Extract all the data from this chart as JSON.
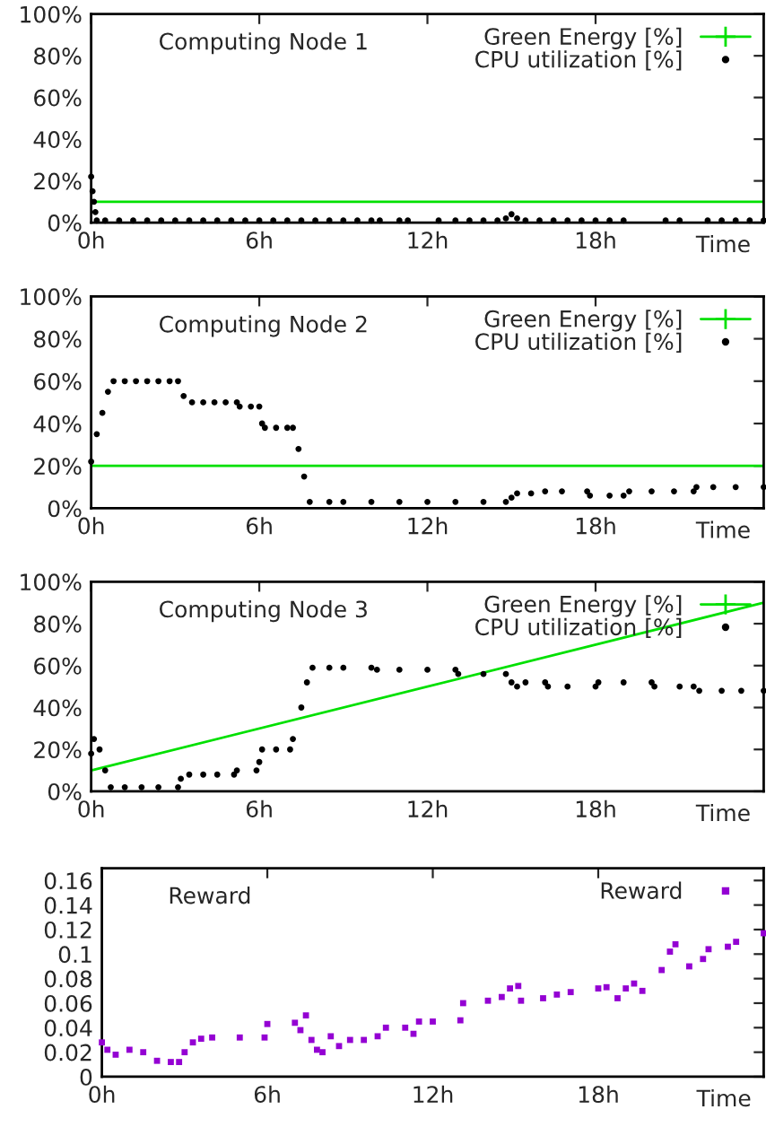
{
  "chart_data": [
    {
      "type": "line",
      "title": "Computing Node 1",
      "xlabel": "Time",
      "xlim": [
        0,
        24
      ],
      "ylim": [
        0,
        100
      ],
      "legend": "top right",
      "grid": false,
      "xticks": [
        {
          "value": 0,
          "label": "0h"
        },
        {
          "value": 6,
          "label": "6h"
        },
        {
          "value": 12,
          "label": "12h"
        },
        {
          "value": 18,
          "label": "18h"
        }
      ],
      "yticks": [
        {
          "value": 0,
          "label": "0%"
        },
        {
          "value": 20,
          "label": "20%"
        },
        {
          "value": 40,
          "label": "40%"
        },
        {
          "value": 60,
          "label": "60%"
        },
        {
          "value": 80,
          "label": "80%"
        },
        {
          "value": 100,
          "label": "100%"
        }
      ],
      "series": [
        {
          "name": "Green Energy [%]",
          "type": "line",
          "color": "#00e000",
          "x": [
            0,
            24
          ],
          "values": [
            10,
            10
          ]
        },
        {
          "name": "CPU utilization [%]",
          "type": "scatter",
          "marker": "circle",
          "color": "#000000",
          "x": [
            0,
            0.05,
            0.1,
            0.15,
            0.2,
            0.5,
            1,
            1.5,
            2,
            2.5,
            3,
            3.5,
            4,
            4.5,
            5,
            5.5,
            6,
            6.5,
            7,
            7.5,
            8,
            8.5,
            9,
            9.5,
            10,
            10.3,
            11,
            11.3,
            12.4,
            13,
            13.5,
            14,
            14.5,
            14.8,
            15,
            15.2,
            15.5,
            16,
            16.5,
            17,
            17.5,
            18,
            18.5,
            19,
            20.5,
            21,
            22,
            22.5,
            23,
            23.5,
            24
          ],
          "values": [
            22,
            15,
            10,
            5,
            1,
            1,
            1,
            1,
            1,
            1,
            1,
            1,
            1,
            1,
            1,
            1,
            1,
            1,
            1,
            1,
            1,
            1,
            1,
            1,
            1,
            1,
            1,
            1,
            1,
            1,
            1,
            1,
            1,
            2,
            4,
            2,
            1,
            1,
            1,
            1,
            1,
            1,
            1,
            1,
            1,
            1,
            1,
            1,
            1,
            1,
            1
          ]
        }
      ]
    },
    {
      "type": "line",
      "title": "Computing Node 2",
      "xlabel": "Time",
      "xlim": [
        0,
        24
      ],
      "ylim": [
        0,
        100
      ],
      "legend": "top right",
      "grid": false,
      "xticks": [
        {
          "value": 0,
          "label": "0h"
        },
        {
          "value": 6,
          "label": "6h"
        },
        {
          "value": 12,
          "label": "12h"
        },
        {
          "value": 18,
          "label": "18h"
        }
      ],
      "yticks": [
        {
          "value": 0,
          "label": "0%"
        },
        {
          "value": 20,
          "label": "20%"
        },
        {
          "value": 40,
          "label": "40%"
        },
        {
          "value": 60,
          "label": "60%"
        },
        {
          "value": 80,
          "label": "80%"
        },
        {
          "value": 100,
          "label": "100%"
        }
      ],
      "series": [
        {
          "name": "Green Energy [%]",
          "type": "line",
          "color": "#00e000",
          "x": [
            0,
            24
          ],
          "values": [
            20,
            20
          ]
        },
        {
          "name": "CPU utilization [%]",
          "type": "scatter",
          "marker": "circle",
          "color": "#000000",
          "x": [
            0,
            0.2,
            0.4,
            0.6,
            0.8,
            1.2,
            1.6,
            2,
            2.4,
            2.8,
            3.1,
            3.3,
            3.6,
            4,
            4.4,
            4.8,
            5.2,
            5.3,
            5.7,
            6.0,
            6.1,
            6.2,
            6.6,
            7.0,
            7.2,
            7.4,
            7.6,
            7.8,
            8.5,
            9,
            10,
            11,
            12,
            13,
            14,
            14.8,
            15,
            15.2,
            15.7,
            16.2,
            16.8,
            17.7,
            17.8,
            18.5,
            19,
            19.2,
            20,
            20.8,
            21.5,
            21.6,
            22.2,
            23,
            24
          ],
          "values": [
            22,
            35,
            45,
            55,
            60,
            60,
            60,
            60,
            60,
            60,
            60,
            53,
            50,
            50,
            50,
            50,
            50,
            48,
            48,
            48,
            40,
            38,
            38,
            38,
            38,
            28,
            15,
            3,
            3,
            3,
            3,
            3,
            3,
            3,
            3,
            3,
            5,
            7,
            7,
            8,
            8,
            8,
            6,
            6,
            6,
            8,
            8,
            8,
            8,
            10,
            10,
            10,
            10
          ]
        }
      ]
    },
    {
      "type": "line",
      "title": "Computing Node 3",
      "xlabel": "Time",
      "xlim": [
        0,
        24
      ],
      "ylim": [
        0,
        100
      ],
      "legend": "top right",
      "grid": false,
      "xticks": [
        {
          "value": 0,
          "label": "0h"
        },
        {
          "value": 6,
          "label": "6h"
        },
        {
          "value": 12,
          "label": "12h"
        },
        {
          "value": 18,
          "label": "18h"
        }
      ],
      "yticks": [
        {
          "value": 0,
          "label": "0%"
        },
        {
          "value": 20,
          "label": "20%"
        },
        {
          "value": 40,
          "label": "40%"
        },
        {
          "value": 60,
          "label": "60%"
        },
        {
          "value": 80,
          "label": "80%"
        },
        {
          "value": 100,
          "label": "100%"
        }
      ],
      "series": [
        {
          "name": "Green Energy [%]",
          "type": "line",
          "color": "#00e000",
          "x": [
            0,
            24
          ],
          "values": [
            10,
            90
          ]
        },
        {
          "name": "CPU utilization [%]",
          "type": "scatter",
          "marker": "circle",
          "color": "#000000",
          "x": [
            0,
            0.1,
            0.3,
            0.5,
            0.7,
            1.2,
            1.8,
            2.4,
            3.1,
            3.2,
            3.5,
            4,
            4.5,
            5.1,
            5.2,
            5.9,
            6.0,
            6.1,
            6.6,
            7.1,
            7.2,
            7.5,
            7.7,
            7.9,
            8.5,
            9,
            10,
            10.2,
            11,
            12,
            13,
            13.1,
            14,
            14.8,
            15,
            15.2,
            15.5,
            16.2,
            16.3,
            17,
            18,
            18.1,
            19,
            20,
            20.1,
            21,
            21.5,
            21.7,
            22.5,
            23.2,
            24
          ],
          "values": [
            18,
            25,
            20,
            10,
            2,
            2,
            2,
            2,
            2,
            6,
            8,
            8,
            8,
            8,
            10,
            10,
            14,
            20,
            20,
            20,
            25,
            40,
            52,
            59,
            59,
            59,
            59,
            58,
            58,
            58,
            58,
            56,
            56,
            56,
            52,
            50,
            52,
            52,
            50,
            50,
            50,
            52,
            52,
            52,
            50,
            50,
            50,
            48,
            48,
            48,
            48
          ]
        }
      ]
    },
    {
      "type": "scatter",
      "title": "Reward",
      "xlabel": "Time",
      "xlim": [
        0,
        24
      ],
      "ylim": [
        0,
        0.17
      ],
      "legend": "top right",
      "grid": false,
      "marker": "square",
      "xticks": [
        {
          "value": 0,
          "label": "0h"
        },
        {
          "value": 6,
          "label": "6h"
        },
        {
          "value": 12,
          "label": "12h"
        },
        {
          "value": 18,
          "label": "18h"
        }
      ],
      "yticks": [
        0,
        0.02,
        0.04,
        0.06,
        0.08,
        {
          "value": 0.1,
          "label": "0.1"
        },
        0.12,
        0.14,
        0.16
      ],
      "series": [
        {
          "name": "Reward",
          "color": "#9400d3",
          "x": [
            0,
            0.2,
            0.5,
            1,
            1.5,
            2,
            2.5,
            2.8,
            3.0,
            3.3,
            3.6,
            4,
            5,
            5.9,
            6.0,
            7.0,
            7.2,
            7.4,
            7.6,
            7.8,
            8,
            8.3,
            8.6,
            9,
            9.5,
            10,
            10.3,
            11,
            11.3,
            11.5,
            12,
            13,
            13.1,
            14,
            14.5,
            14.8,
            15.1,
            15.2,
            16,
            16.5,
            17,
            18,
            18.3,
            18.7,
            19,
            19.3,
            19.6,
            20.3,
            20.6,
            20.8,
            21.3,
            21.8,
            22,
            22.7,
            23,
            24
          ],
          "values": [
            0.028,
            0.022,
            0.018,
            0.022,
            0.02,
            0.013,
            0.012,
            0.012,
            0.02,
            0.028,
            0.031,
            0.032,
            0.032,
            0.032,
            0.043,
            0.044,
            0.038,
            0.05,
            0.03,
            0.022,
            0.02,
            0.033,
            0.025,
            0.03,
            0.03,
            0.033,
            0.04,
            0.04,
            0.035,
            0.045,
            0.045,
            0.046,
            0.06,
            0.062,
            0.065,
            0.072,
            0.074,
            0.062,
            0.064,
            0.067,
            0.069,
            0.072,
            0.073,
            0.064,
            0.072,
            0.076,
            0.07,
            0.087,
            0.102,
            0.108,
            0.09,
            0.096,
            0.104,
            0.106,
            0.11,
            0.117
          ]
        }
      ]
    }
  ]
}
